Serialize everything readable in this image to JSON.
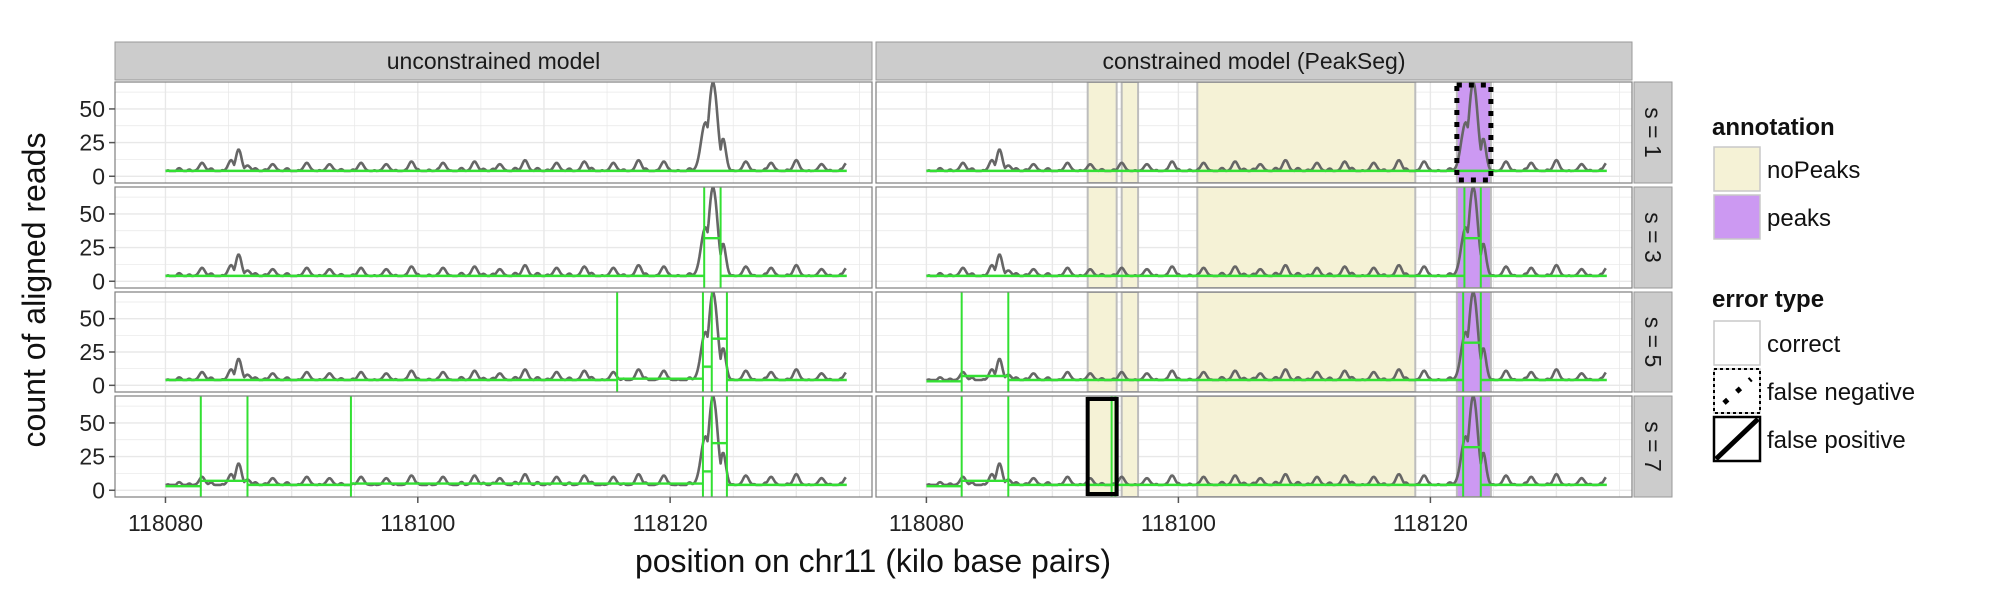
{
  "chart_data": {
    "type": "line",
    "xlabel": "position on chr11 (kilo base pairs)",
    "ylabel": "count of aligned reads",
    "xlim": [
      118076,
      118136
    ],
    "ylim": [
      -5,
      70
    ],
    "x_ticks": [
      118080,
      118100,
      118120
    ],
    "y_ticks": [
      0,
      25,
      50
    ],
    "column_strips": [
      "unconstrained model",
      "constrained model (PeakSeg)"
    ],
    "row_strips": [
      "s = 1",
      "s = 3",
      "s = 5",
      "s = 7"
    ],
    "coverage_profile": {
      "x_range": [
        118080,
        118134
      ],
      "baseline": 4,
      "bumps": [
        {
          "x": 118082.9,
          "y": 10
        },
        {
          "x": 118085.2,
          "y": 12
        },
        {
          "x": 118085.8,
          "y": 20
        },
        {
          "x": 118086.5,
          "y": 8
        },
        {
          "x": 118088.5,
          "y": 9
        },
        {
          "x": 118091.2,
          "y": 10
        },
        {
          "x": 118093.0,
          "y": 9
        },
        {
          "x": 118095.5,
          "y": 10
        },
        {
          "x": 118097.5,
          "y": 9
        },
        {
          "x": 118099.5,
          "y": 11
        },
        {
          "x": 118102.0,
          "y": 10
        },
        {
          "x": 118104.5,
          "y": 11
        },
        {
          "x": 118106.5,
          "y": 9
        },
        {
          "x": 118108.5,
          "y": 12
        },
        {
          "x": 118111.0,
          "y": 10
        },
        {
          "x": 118113.2,
          "y": 11
        },
        {
          "x": 118115.5,
          "y": 10
        },
        {
          "x": 118117.5,
          "y": 12
        },
        {
          "x": 118119.5,
          "y": 11
        },
        {
          "x": 118122.8,
          "y": 40
        },
        {
          "x": 118123.4,
          "y": 70
        },
        {
          "x": 118124.2,
          "y": 28
        },
        {
          "x": 118126.0,
          "y": 11
        },
        {
          "x": 118128.0,
          "y": 10
        },
        {
          "x": 118130.0,
          "y": 12
        },
        {
          "x": 118132.0,
          "y": 9
        },
        {
          "x": 118134.0,
          "y": 10
        }
      ]
    },
    "annotations": [
      {
        "label": "noPeaks",
        "xmin": 118092.8,
        "xmax": 118095.1
      },
      {
        "label": "noPeaks",
        "xmin": 118095.5,
        "xmax": 118096.8
      },
      {
        "label": "noPeaks",
        "xmin": 118101.5,
        "xmax": 118118.8
      },
      {
        "label": "peaks",
        "xmin": 118122.1,
        "xmax": 118124.8
      }
    ],
    "segmentation": [
      {
        "column": 0,
        "s": 1,
        "breakpoints": [],
        "means": [
          4
        ]
      },
      {
        "column": 0,
        "s": 3,
        "breakpoints": [
          118122.7,
          118124.0
        ],
        "means": [
          4,
          32,
          4
        ]
      },
      {
        "column": 0,
        "s": 5,
        "breakpoints": [
          118115.8,
          118122.6,
          118123.3,
          118124.5
        ],
        "means": [
          4,
          5,
          14,
          35,
          4
        ]
      },
      {
        "column": 0,
        "s": 7,
        "breakpoints": [
          118082.8,
          118086.5,
          118094.7,
          118122.6,
          118123.3,
          118124.5
        ],
        "means": [
          3,
          7,
          4,
          5,
          14,
          35,
          4
        ]
      },
      {
        "column": 1,
        "s": 1,
        "breakpoints": [],
        "means": [
          4
        ]
      },
      {
        "column": 1,
        "s": 3,
        "breakpoints": [
          118122.7,
          118124.0
        ],
        "means": [
          4,
          32,
          4
        ]
      },
      {
        "column": 1,
        "s": 5,
        "breakpoints": [
          118082.8,
          118086.5,
          118122.6,
          118124.0
        ],
        "means": [
          3,
          7,
          4,
          32,
          4
        ]
      },
      {
        "column": 1,
        "s": 7,
        "breakpoints": [
          118082.8,
          118086.5,
          118094.7,
          118095.0,
          118122.6,
          118124.0
        ],
        "means": [
          3,
          7,
          4,
          4,
          4,
          32,
          4
        ]
      }
    ],
    "errors": [
      {
        "column": 1,
        "s": 1,
        "type": "false negative",
        "xmin": 118122.1,
        "xmax": 118124.8
      },
      {
        "column": 1,
        "s": 7,
        "type": "false positive",
        "xmin": 118092.8,
        "xmax": 118095.1
      }
    ],
    "legend": {
      "position": "right",
      "annotation_title": "annotation",
      "annotation_items": [
        {
          "label": "noPeaks",
          "fill": "#f5f2d6"
        },
        {
          "label": "peaks",
          "fill": "#cc99f2"
        }
      ],
      "error_title": "error type",
      "error_items": [
        {
          "label": "correct",
          "style": "correct"
        },
        {
          "label": "false negative",
          "style": "false-negative"
        },
        {
          "label": "false positive",
          "style": "false-positive"
        }
      ]
    },
    "colors": {
      "coverage": "#666666",
      "segmentation": "#33e033",
      "panel_background": "#ffffff",
      "grid": "#e8e8e8",
      "strip_background": "#cccccc",
      "noPeaks": "#f5f2d6",
      "peaks": "#cc99f2"
    },
    "grid": true
  }
}
